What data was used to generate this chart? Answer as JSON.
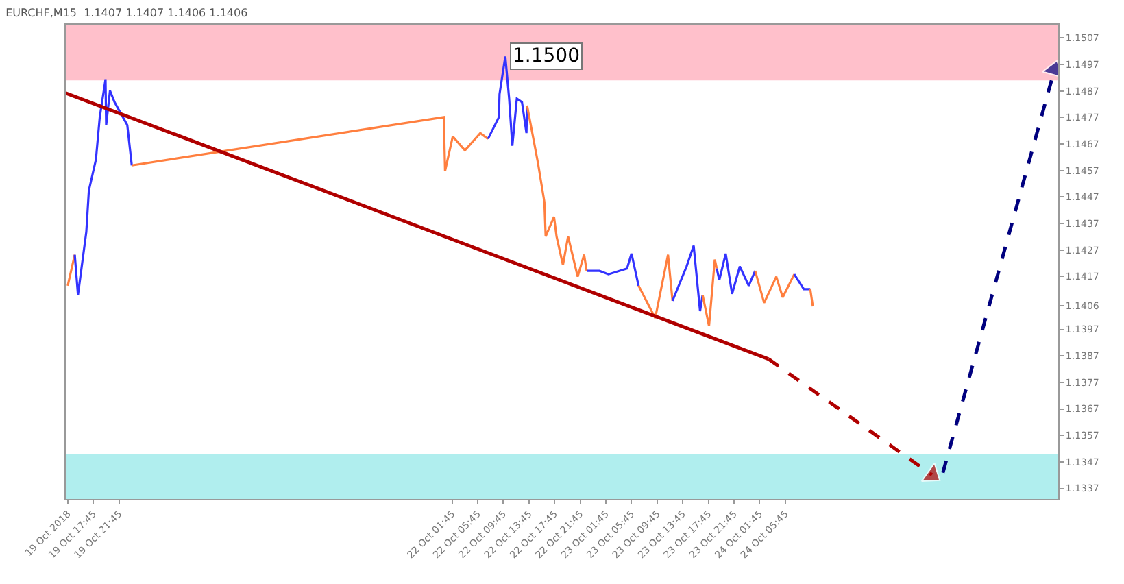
{
  "chart_data": {
    "type": "line",
    "title": "EURCHF,M15  1.1407 1.1407 1.1406 1.1406",
    "xlim": [
      "2018-10-19T13:27",
      "2018-10-26T00:21"
    ],
    "ylim": [
      1.1333,
      1.1512
    ],
    "xticks": [
      {
        "value": "2018-10-19T13:45",
        "label": "19 Oct 2018"
      },
      {
        "value": "2018-10-19T17:45",
        "label": "19 Oct 17:45"
      },
      {
        "value": "2018-10-19T21:45",
        "label": "19 Oct 21:45"
      },
      {
        "value": "2018-10-22T01:45",
        "label": "22 Oct 01:45"
      },
      {
        "value": "2018-10-22T05:45",
        "label": "22 Oct 05:45"
      },
      {
        "value": "2018-10-22T09:45",
        "label": "22 Oct 09:45"
      },
      {
        "value": "2018-10-22T13:45",
        "label": "22 Oct 13:45"
      },
      {
        "value": "2018-10-22T17:45",
        "label": "22 Oct 17:45"
      },
      {
        "value": "2018-10-22T21:45",
        "label": "22 Oct 21:45"
      },
      {
        "value": "2018-10-23T01:45",
        "label": "23 Oct 01:45"
      },
      {
        "value": "2018-10-23T05:45",
        "label": "23 Oct 05:45"
      },
      {
        "value": "2018-10-23T09:45",
        "label": "23 Oct 09:45"
      },
      {
        "value": "2018-10-23T13:45",
        "label": "23 Oct 13:45"
      },
      {
        "value": "2018-10-23T17:45",
        "label": "23 Oct 17:45"
      },
      {
        "value": "2018-10-23T21:45",
        "label": "23 Oct 21:45"
      },
      {
        "value": "2018-10-24T01:45",
        "label": "24 Oct 01:45"
      },
      {
        "value": "2018-10-24T05:45",
        "label": "24 Oct 05:45"
      }
    ],
    "yticks": [
      1.1337,
      1.1347,
      1.1357,
      1.1367,
      1.1377,
      1.1387,
      1.1397,
      1.1406,
      1.1417,
      1.1427,
      1.1437,
      1.1447,
      1.1457,
      1.1467,
      1.1477,
      1.1487,
      1.1497,
      1.1507
    ],
    "grid": false,
    "bands": [
      {
        "axis": "y",
        "from": 1.1491,
        "to": 1.1512,
        "color": "#ffc0cb"
      },
      {
        "axis": "y",
        "from": 1.1333,
        "to": 1.135,
        "color": "#b0eeee"
      }
    ],
    "annotations": [
      {
        "text": "1.1500",
        "x": "2018-10-22T10:03",
        "y": 1.15
      }
    ],
    "series": [
      {
        "color": "#ff7f3f",
        "x": [
          "2018-10-19T13:45",
          "2018-10-19T14:51"
        ],
        "values": [
          1.14135,
          1.14252
        ]
      },
      {
        "color": "#3333ff",
        "x": [
          "2018-10-19T14:51",
          "2018-10-19T15:21",
          "2018-10-19T16:39",
          "2018-10-19T17:03",
          "2018-10-19T18:09",
          "2018-10-19T18:45",
          "2018-10-19T19:39",
          "2018-10-19T19:45",
          "2018-10-19T20:21",
          "2018-10-19T21:03",
          "2018-10-19T23:03",
          "2018-10-19T23:45"
        ],
        "values": [
          1.14252,
          1.141,
          1.14338,
          1.14494,
          1.14611,
          1.14771,
          1.14914,
          1.14741,
          1.14871,
          1.14828,
          1.14741,
          1.14589
        ]
      },
      {
        "color": "#ff7f3f",
        "x": [
          "2018-10-19T23:45",
          "2018-10-22T00:27",
          "2018-10-22T00:39",
          "2018-10-22T01:51",
          "2018-10-22T03:45",
          "2018-10-22T06:09",
          "2018-10-22T07:21"
        ],
        "values": [
          1.14589,
          1.14771,
          1.14568,
          1.14698,
          1.14646,
          1.14711,
          1.14689
        ]
      },
      {
        "color": "#3333ff",
        "x": [
          "2018-10-22T07:21",
          "2018-10-22T09:03",
          "2018-10-22T09:09",
          "2018-10-22T10:03",
          "2018-10-22T10:39",
          "2018-10-22T11:09",
          "2018-10-22T11:51",
          "2018-10-22T12:39",
          "2018-10-22T13:21",
          "2018-10-22T13:27"
        ],
        "values": [
          1.14689,
          1.14771,
          1.14858,
          1.15,
          1.14841,
          1.14663,
          1.14841,
          1.14828,
          1.14711,
          1.14815
        ]
      },
      {
        "color": "#ff7f3f",
        "x": [
          "2018-10-22T13:27",
          "2018-10-22T15:09",
          "2018-10-22T16:09",
          "2018-10-22T16:21",
          "2018-10-22T17:39",
          "2018-10-22T18:03",
          "2018-10-22T19:03",
          "2018-10-22T19:51",
          "2018-10-22T21:21",
          "2018-10-22T22:21",
          "2018-10-22T22:45"
        ],
        "values": [
          1.14815,
          1.14598,
          1.14451,
          1.14321,
          1.14395,
          1.14321,
          1.14213,
          1.14321,
          1.14169,
          1.14252,
          1.14191
        ]
      },
      {
        "color": "#3333ff",
        "x": [
          "2018-10-22T22:45",
          "2018-10-23T00:45",
          "2018-10-23T02:09",
          "2018-10-23T05:03",
          "2018-10-23T05:45",
          "2018-10-23T06:51"
        ],
        "values": [
          1.14191,
          1.14191,
          1.14178,
          1.142,
          1.14256,
          1.14135
        ]
      },
      {
        "color": "#ff7f3f",
        "x": [
          "2018-10-23T06:51",
          "2018-10-23T09:27",
          "2018-10-23T11:27",
          "2018-10-23T12:09"
        ],
        "values": [
          1.14135,
          1.14013,
          1.14252,
          1.14078
        ]
      },
      {
        "color": "#3333ff",
        "x": [
          "2018-10-23T12:09",
          "2018-10-23T14:21",
          "2018-10-23T15:27",
          "2018-10-23T16:27",
          "2018-10-23T16:51"
        ],
        "values": [
          1.14078,
          1.14208,
          1.14286,
          1.14039,
          1.141
        ]
      },
      {
        "color": "#ff7f3f",
        "x": [
          "2018-10-23T16:51",
          "2018-10-23T17:51",
          "2018-10-23T18:45",
          "2018-10-23T19:03"
        ],
        "values": [
          1.141,
          1.13983,
          1.14234,
          1.142
        ]
      },
      {
        "color": "#3333ff",
        "x": [
          "2018-10-23T19:03",
          "2018-10-23T19:27",
          "2018-10-23T20:27",
          "2018-10-23T21:27",
          "2018-10-23T22:39",
          "2018-10-24T00:03",
          "2018-10-24T01:03"
        ],
        "values": [
          1.142,
          1.14156,
          1.14256,
          1.14104,
          1.14208,
          1.14135,
          1.14191
        ]
      },
      {
        "color": "#ff7f3f",
        "x": [
          "2018-10-24T01:03",
          "2018-10-24T02:27",
          "2018-10-24T04:21",
          "2018-10-24T05:21",
          "2018-10-24T07:09"
        ],
        "values": [
          1.14191,
          1.1407,
          1.14169,
          1.14091,
          1.14178
        ]
      },
      {
        "color": "#3333ff",
        "x": [
          "2018-10-24T07:09",
          "2018-10-24T08:39",
          "2018-10-24T09:39"
        ],
        "values": [
          1.14178,
          1.14122,
          1.14122
        ]
      },
      {
        "color": "#ff7f3f",
        "x": [
          "2018-10-24T09:39",
          "2018-10-24T10:03"
        ],
        "values": [
          1.14122,
          1.14057
        ]
      },
      {
        "color": "#b00000",
        "x": [
          "2018-10-19T13:27",
          "2018-10-24T03:09"
        ],
        "values": [
          1.14862,
          1.13858
        ],
        "line_style": "solid"
      },
      {
        "color": "#b00000",
        "x": [
          "2018-10-24T03:09",
          "2018-10-25T04:39"
        ],
        "values": [
          1.13858,
          1.13421
        ],
        "line_style": "dashed",
        "marker": "triangle"
      },
      {
        "color": "#00007f",
        "x": [
          "2018-10-25T06:21",
          "2018-10-25T23:45"
        ],
        "values": [
          1.13429,
          1.14949
        ],
        "line_style": "dashed",
        "marker": "triangle"
      }
    ]
  }
}
